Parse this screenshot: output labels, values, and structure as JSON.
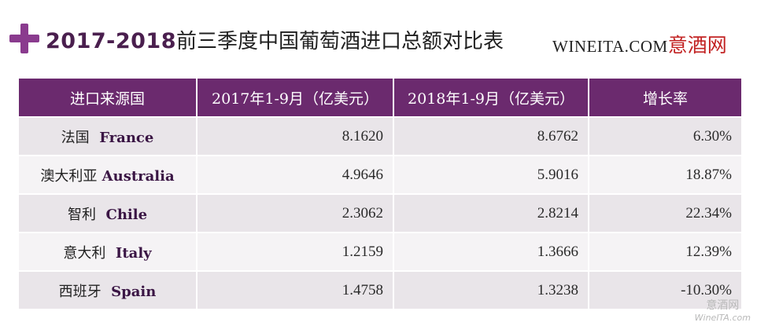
{
  "header": {
    "title_year": "2017-2018",
    "title_text": "前三季度中国葡萄酒进口总额对比表",
    "logo_en": "WINEITA.COM",
    "logo_cn": "意酒网"
  },
  "table": {
    "columns": [
      "进口来源国",
      "2017年1-9月（亿美元）",
      "2018年1-9月（亿美元）",
      "增长率"
    ],
    "rows": [
      {
        "country_cn": "法国",
        "country_en": "France",
        "v2017": "8.1620",
        "v2018": "8.6762",
        "growth": "6.30%"
      },
      {
        "country_cn": "澳大利亚",
        "country_en": "Australia",
        "v2017": "4.9646",
        "v2018": "5.9016",
        "growth": "18.87%"
      },
      {
        "country_cn": "智利",
        "country_en": "Chile",
        "v2017": "2.3062",
        "v2018": "2.8214",
        "growth": "22.34%"
      },
      {
        "country_cn": "意大利",
        "country_en": "Italy",
        "v2017": "1.2159",
        "v2018": "1.3666",
        "growth": "12.39%"
      },
      {
        "country_cn": "西班牙",
        "country_en": "Spain",
        "v2017": "1.4758",
        "v2018": "1.3238",
        "growth": "-10.30%"
      }
    ]
  },
  "watermark": {
    "cn": "意酒网",
    "en": "WineITA.com"
  },
  "colors": {
    "header_bg": "#6b2a6e",
    "accent": "#8a3b8e",
    "row_odd": "#e9e5e9",
    "row_even": "#f5f3f5"
  }
}
